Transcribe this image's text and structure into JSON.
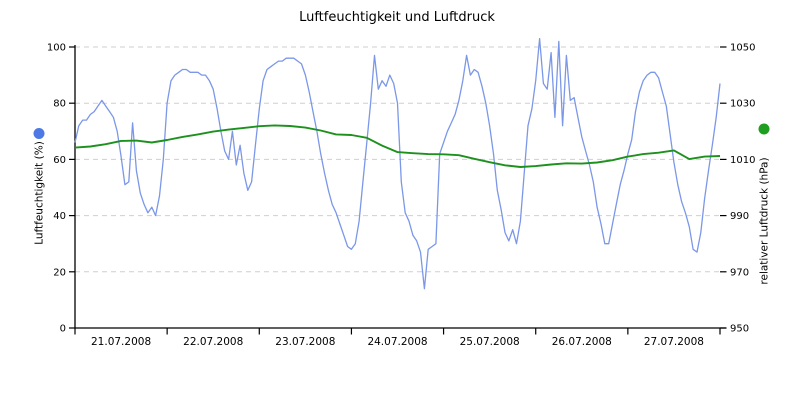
{
  "title": "Luftfeuchtigkeit und Luftdruck",
  "chart_data": {
    "type": "line",
    "title": "Luftfeuchtigkeit und Luftdruck",
    "grid": "dashed-horizontal",
    "legend_position": "rotated-on-axes",
    "x_axis": {
      "tick_labels": [
        "21.07.2008",
        "22.07.2008",
        "23.07.2008",
        "24.07.2008",
        "25.07.2008",
        "26.07.2008",
        "27.07.2008"
      ],
      "days": 7
    },
    "left_axis": {
      "label": "Luftfeuchtigkeit (%)",
      "ticks": [
        0,
        20,
        40,
        60,
        80,
        100
      ],
      "ylim": [
        0,
        100
      ],
      "marker_color": "#4d79e4"
    },
    "right_axis": {
      "label": "relativer Luftdruck (hPa)",
      "ticks": [
        950,
        970,
        990,
        1010,
        1030,
        1050
      ],
      "ylim": [
        950,
        1050
      ],
      "marker_color": "#1f9e1f"
    },
    "series": [
      {
        "name": "Luftfeuchtigkeit",
        "unit": "%",
        "axis": "left",
        "color": "#7b97e8",
        "sampling": "hourly",
        "values": [
          66,
          72,
          74,
          74,
          76,
          77,
          79,
          81,
          79,
          77,
          75,
          70,
          61,
          51,
          52,
          73,
          56,
          48,
          44,
          41,
          43,
          40,
          47,
          60,
          80,
          88,
          90,
          91,
          92,
          92,
          91,
          91,
          91,
          90,
          90,
          88,
          85,
          78,
          70,
          63,
          60,
          70,
          58,
          65,
          55,
          49,
          52,
          65,
          78,
          88,
          92,
          93,
          94,
          95,
          95,
          96,
          96,
          96,
          95,
          94,
          90,
          84,
          77,
          70,
          62,
          55,
          49,
          44,
          41,
          37,
          33,
          29,
          28,
          30,
          38,
          52,
          66,
          80,
          97,
          85,
          88,
          86,
          90,
          87,
          80,
          52,
          41,
          38,
          33,
          31,
          27,
          14,
          28,
          29,
          30,
          62,
          66,
          70,
          73,
          76,
          81,
          88,
          97,
          90,
          92,
          91,
          86,
          80,
          72,
          62,
          49,
          42,
          34,
          31,
          35,
          30,
          38,
          55,
          72,
          78,
          88,
          103,
          87,
          85,
          98,
          75,
          102,
          72,
          97,
          81,
          82,
          75,
          68,
          63,
          58,
          52,
          43,
          37,
          30,
          30,
          37,
          44,
          51,
          56,
          62,
          67,
          77,
          84,
          88,
          90,
          91,
          91,
          89,
          84,
          79,
          69,
          59,
          51,
          45,
          41,
          36,
          28,
          27,
          34,
          46,
          56,
          65,
          75,
          87
        ]
      },
      {
        "name": "relativer Luftdruck",
        "unit": "hPa",
        "axis": "right",
        "color": "#1d911d",
        "sampling": "every-4-hours",
        "values": [
          1014.2,
          1014.6,
          1015.4,
          1016.6,
          1016.7,
          1016.0,
          1016.9,
          1018.0,
          1018.9,
          1019.9,
          1020.6,
          1021.2,
          1021.8,
          1022.1,
          1021.9,
          1021.3,
          1020.3,
          1018.9,
          1018.7,
          1017.7,
          1014.9,
          1012.6,
          1012.2,
          1011.9,
          1011.8,
          1011.5,
          1010.2,
          1009.0,
          1007.9,
          1007.3,
          1007.6,
          1008.2,
          1008.6,
          1008.5,
          1008.9,
          1009.7,
          1011.0,
          1011.9,
          1012.4,
          1013.2,
          1010.1,
          1011.0,
          1011.2
        ]
      }
    ]
  }
}
